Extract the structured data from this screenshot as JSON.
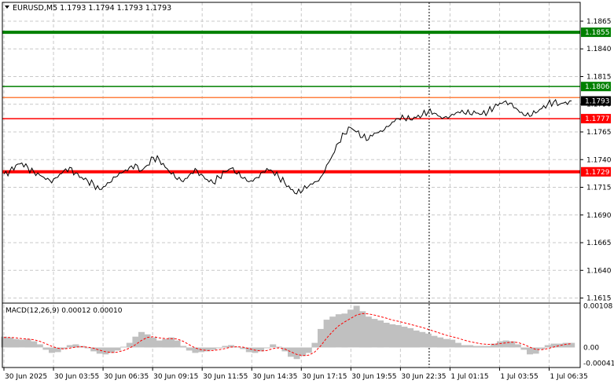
{
  "header": {
    "symbol_line": "EURUSD,M5  1.1793 1.1794 1.1793 1.1793",
    "menu_icon": "triangle-down-icon"
  },
  "macd_header": {
    "label": "MACD(12,26,9) 0.00012 0.00010"
  },
  "colors": {
    "background": "#ffffff",
    "grid": "#c8c8c8",
    "price_line": "#000000",
    "green_level": "#008000",
    "red_level": "#ff0000",
    "orange_level": "#ff8040",
    "histogram": "#c0c0c0",
    "signal": "#ff0000",
    "current_tag": "#000000"
  },
  "chart_data": [
    {
      "type": "line",
      "series": [
        {
          "name": "EURUSD,M5",
          "values": [
            1.1727,
            1.173,
            1.1735,
            1.1737,
            1.1733,
            1.1729,
            1.1726,
            1.1722,
            1.1719,
            1.1724,
            1.173,
            1.1733,
            1.1728,
            1.1724,
            1.1721,
            1.1718,
            1.1713,
            1.1716,
            1.172,
            1.1725,
            1.1729,
            1.1733,
            1.1736,
            1.173,
            1.1735,
            1.1742,
            1.174,
            1.1733,
            1.1727,
            1.1722,
            1.172,
            1.1726,
            1.1732,
            1.1727,
            1.1722,
            1.1719,
            1.1724,
            1.1729,
            1.1732,
            1.1727,
            1.1723,
            1.172,
            1.1723,
            1.1728,
            1.1732,
            1.1729,
            1.1724,
            1.1719,
            1.1713,
            1.1709,
            1.1712,
            1.1716,
            1.172,
            1.1724,
            1.1735,
            1.1744,
            1.1755,
            1.1763,
            1.1769,
            1.1765,
            1.176,
            1.1758,
            1.1764,
            1.1766,
            1.177,
            1.1774,
            1.1777,
            1.1777,
            1.1776,
            1.1778,
            1.178,
            1.1783,
            1.1782,
            1.1779,
            1.1779,
            1.1781,
            1.1783,
            1.1782,
            1.1781,
            1.1782,
            1.1781,
            1.1783,
            1.1787,
            1.1791,
            1.1793,
            1.1791,
            1.1785,
            1.178,
            1.1779,
            1.1782,
            1.1786,
            1.179,
            1.1792,
            1.179,
            1.1792,
            1.1793
          ]
        }
      ],
      "y_ticks": [
        "1.1865",
        "1.1840",
        "1.1815",
        "1.1790",
        "1.1765",
        "1.1740",
        "1.1715",
        "1.1690",
        "1.1665",
        "1.1640",
        "1.1615"
      ],
      "ylim": [
        1.1609,
        1.1882
      ],
      "grid": true,
      "levels": [
        {
          "label": "1.1855",
          "value": 1.1855,
          "color": "green",
          "width": "thick"
        },
        {
          "label": "1.1806",
          "value": 1.1806,
          "color": "green",
          "width": "thin"
        },
        {
          "label": "",
          "value": 1.1796,
          "color": "orange",
          "width": "thin"
        },
        {
          "label": "1.1777",
          "value": 1.1777,
          "color": "red",
          "width": "thin"
        },
        {
          "label": "1.1729",
          "value": 1.1729,
          "color": "red",
          "width": "thick"
        }
      ],
      "current_price": {
        "label": "1.1793",
        "value": 1.1793
      }
    },
    {
      "type": "bar",
      "title": "MACD(12,26,9) 0.00012 0.00010",
      "y_ticks": [
        "0.00108",
        "0.00",
        "-0.00041"
      ],
      "ylim": [
        -0.00052,
        0.00115
      ],
      "histogram": [
        0.00028,
        0.00026,
        0.00022,
        0.0002,
        0.00022,
        0.00016,
        8e-05,
        -6e-05,
        -0.00014,
        -0.00012,
        -4e-05,
        6e-05,
        8e-05,
        4e-05,
        -2e-05,
        -0.0001,
        -0.00016,
        -0.00018,
        -0.00014,
        -8e-05,
        2e-05,
        0.00012,
        0.00028,
        0.0004,
        0.00034,
        0.00026,
        0.00018,
        0.00022,
        0.00026,
        0.00018,
        4e-05,
        -8e-05,
        -0.00014,
        -0.00012,
        -0.0001,
        -6e-05,
        -2e-05,
        4e-05,
        6e-05,
        2e-05,
        -4e-05,
        -0.00012,
        -0.00014,
        -0.0001,
        -2e-05,
        8e-05,
        2e-05,
        -0.0001,
        -0.00024,
        -0.0003,
        -0.00022,
        -0.00014,
        0.00012,
        0.00048,
        0.00072,
        0.0008,
        0.00086,
        0.00088,
        0.00098,
        0.00108,
        0.00094,
        0.0008,
        0.00074,
        0.0007,
        0.00064,
        0.0006,
        0.00058,
        0.00054,
        0.0005,
        0.00044,
        0.0004,
        0.00036,
        0.0003,
        0.00026,
        0.00022,
        0.0002,
        0.00012,
        6e-05,
        6e-05,
        4e-05,
        4e-05,
        4e-05,
        0.0001,
        0.00016,
        0.00018,
        0.00016,
        8e-05,
        -6e-05,
        -0.00018,
        -0.00016,
        -4e-05,
        6e-05,
        0.0001,
        0.0001,
        0.00012,
        0.00012
      ],
      "signal": [
        0.00026,
        0.00026,
        0.00025,
        0.00023,
        0.00022,
        0.0002,
        0.00016,
        0.0001,
        3e-05,
        -2e-05,
        -4e-05,
        -2e-05,
        1e-05,
        2e-05,
        1e-05,
        -2e-05,
        -7e-05,
        -0.00011,
        -0.00013,
        -0.00012,
        -8e-05,
        -2e-05,
        7e-05,
        0.00018,
        0.00026,
        0.00028,
        0.00025,
        0.00023,
        0.00023,
        0.00022,
        0.00016,
        7e-05,
        -1e-05,
        -6e-05,
        -8e-05,
        -8e-05,
        -6e-05,
        -3e-05,
        1e-05,
        2e-05,
        1e-05,
        -3e-05,
        -7e-05,
        -9e-05,
        -8e-05,
        -3e-05,
        -1e-05,
        -4e-05,
        -0.00011,
        -0.00018,
        -0.00021,
        -0.0002,
        -0.00012,
        4e-05,
        0.00024,
        0.00041,
        0.00056,
        0.00066,
        0.00075,
        0.00084,
        0.00088,
        0.00087,
        0.00084,
        0.0008,
        0.00076,
        0.00071,
        0.00068,
        0.00064,
        0.0006,
        0.00056,
        0.00052,
        0.00047,
        0.00042,
        0.00037,
        0.00032,
        0.00028,
        0.00024,
        0.00019,
        0.00015,
        0.00012,
        9e-05,
        8e-05,
        8e-05,
        0.0001,
        0.00012,
        0.00014,
        0.00013,
        8e-05,
        1e-05,
        -5e-05,
        -6e-05,
        -3e-05,
        1e-05,
        5e-05,
        8e-05,
        0.0001
      ]
    }
  ],
  "time_axis": {
    "labels": [
      "30 Jun 2025",
      "30 Jun 03:55",
      "30 Jun 06:35",
      "30 Jun 09:15",
      "30 Jun 11:55",
      "30 Jun 14:35",
      "30 Jun 17:15",
      "30 Jun 19:55",
      "30 Jun 22:35",
      "1 Jul 01:15",
      "1 Jul 03:55",
      "1 Jul 06:35"
    ]
  },
  "day_separator_label": "1 Jul 01:15"
}
